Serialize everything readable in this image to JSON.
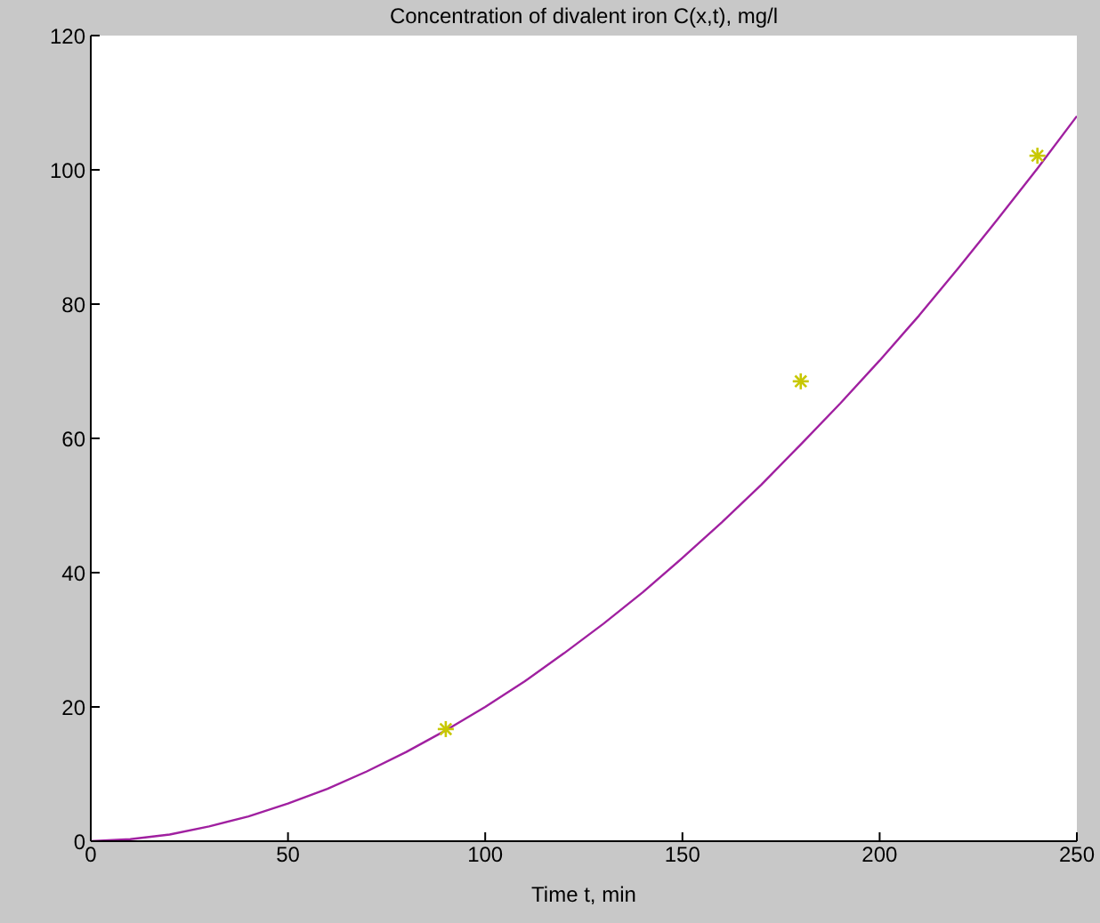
{
  "chart_data": {
    "type": "line",
    "title": "Concentration of divalent iron C(x,t), mg/l",
    "xlabel": "Time t, min",
    "xlim": [
      0,
      250
    ],
    "xticks": [
      0,
      50,
      100,
      150,
      200,
      250
    ],
    "ylim": [
      0,
      120
    ],
    "yticks": [
      0,
      20,
      40,
      60,
      80,
      100,
      120
    ],
    "legend": false,
    "series": [
      {
        "color": "#a020a0",
        "marker": "none",
        "x": [
          0,
          10,
          20,
          30,
          40,
          50,
          60,
          70,
          80,
          90,
          100,
          110,
          120,
          130,
          140,
          150,
          160,
          170,
          180,
          190,
          200,
          210,
          220,
          230,
          240,
          250
        ],
        "values": [
          0,
          0.3,
          1.0,
          2.2,
          3.7,
          5.6,
          7.8,
          10.4,
          13.3,
          16.5,
          20.0,
          23.8,
          28.0,
          32.4,
          37.1,
          42.2,
          47.5,
          53.1,
          59.1,
          65.2,
          71.6,
          78.3,
          85.4,
          92.7,
          100.2,
          108
        ]
      },
      {
        "type": "scatter",
        "color": "#c8c800",
        "marker": "cross",
        "x": [
          90,
          180,
          240
        ],
        "values": [
          16.7,
          68.5,
          102.1
        ]
      }
    ]
  }
}
